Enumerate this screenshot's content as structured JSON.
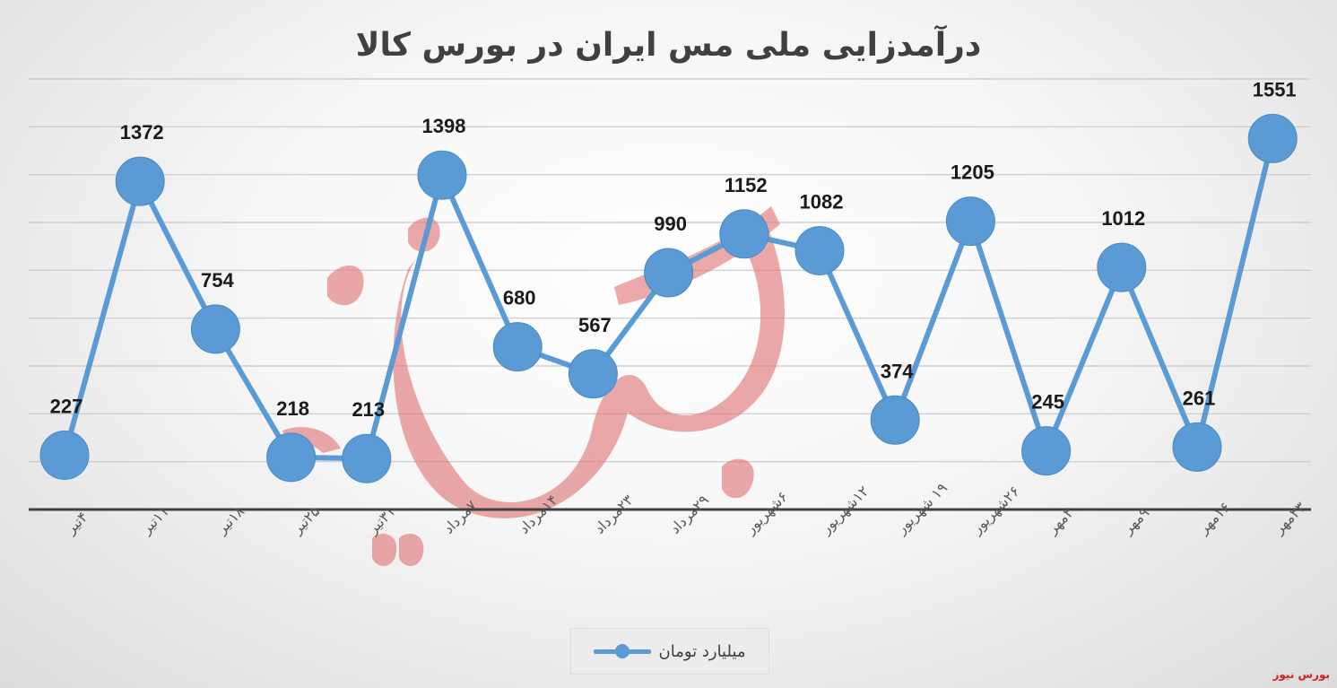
{
  "chart_data": {
    "type": "line",
    "title": "درآمدزایی ملی مس ایران در بورس کالا",
    "categories": [
      "۴تیر",
      "۱۱تیر",
      "۱۸تیر",
      "۲۵تیر",
      "۳۱تیر",
      "۷مرداد",
      "۱۴مرداد",
      "۲۳مرداد",
      "۲۹مرداد",
      "۶شهریور",
      "۱۲شهریور",
      "۱۹ شهریور",
      "۲۶شهریور",
      "۲مهر",
      "۹مهر",
      "۱۶مهر",
      "۲۳مهر"
    ],
    "series": [
      {
        "name": "میلیارد تومان",
        "values": [
          227,
          1372,
          754,
          218,
          213,
          1398,
          680,
          567,
          990,
          1152,
          1082,
          374,
          1205,
          245,
          1012,
          261,
          1551
        ]
      }
    ],
    "ylim": [
      0,
      1800
    ],
    "grid": true,
    "legend_position": "bottom",
    "color": "#5b9bd5"
  },
  "legend": {
    "label": "میلیارد تومان"
  },
  "watermark_text": "بورس نیوز",
  "source_mark": "بورس نیوز"
}
